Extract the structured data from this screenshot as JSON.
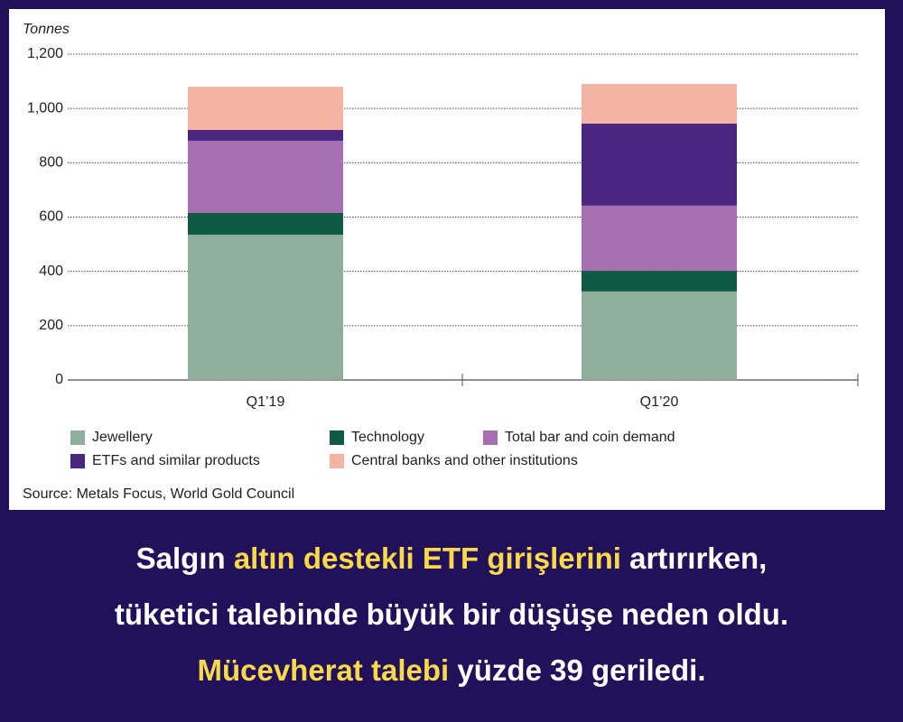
{
  "chart_data": {
    "type": "stacked_bar",
    "y_axis_label": "Tonnes",
    "categories": [
      "Q1’19",
      "Q1’20"
    ],
    "series": [
      {
        "name": "Jewellery",
        "color": "#8fae9c",
        "values": [
          535,
          326
        ]
      },
      {
        "name": "Technology",
        "color": "#0e5a44",
        "values": [
          80,
          76
        ]
      },
      {
        "name": "Total bar and coin demand",
        "color": "#a66fb0",
        "values": [
          266,
          240
        ]
      },
      {
        "name": "ETFs and similar products",
        "color": "#4a2680",
        "values": [
          40,
          302
        ]
      },
      {
        "name": "Central banks and other institutions",
        "color": "#f5b4a3",
        "values": [
          159,
          146
        ]
      }
    ],
    "ylim": [
      0,
      1200
    ],
    "yticks": [
      0,
      200,
      400,
      600,
      800,
      {
        "value": 1000,
        "label": "1,000"
      },
      {
        "value": 1200,
        "label": "1,200"
      }
    ],
    "grid": true,
    "source": "Source: Metals Focus, World Gold Council"
  },
  "caption": {
    "lines": [
      [
        {
          "text": "Salgın ",
          "color": "#ffffff"
        },
        {
          "text": "altın destekli ETF girişlerini",
          "color": "#f9d84a"
        },
        {
          "text": " artırırken,",
          "color": "#ffffff"
        }
      ],
      [
        {
          "text": "tüketici talebinde büyük bir düşüşe neden oldu.",
          "color": "#ffffff"
        }
      ],
      [
        {
          "text": "Mücevherat talebi",
          "color": "#f9d84a"
        },
        {
          "text": " yüzde 39 geriledi.",
          "color": "#ffffff"
        }
      ]
    ]
  }
}
